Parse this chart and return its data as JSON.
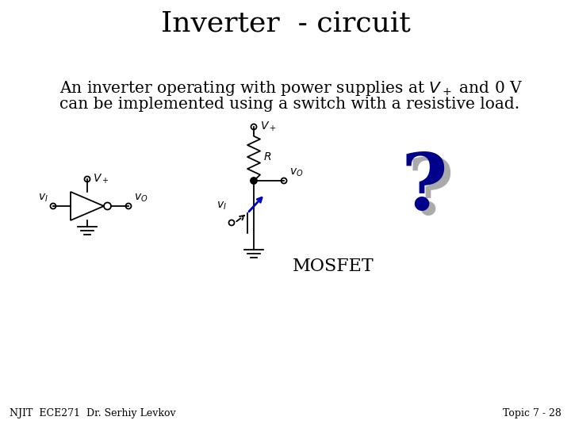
{
  "title": "Inverter  - circuit",
  "title_fontsize": 26,
  "title_font": "serif",
  "body_line1_prefix": "An inverter operating with power supplies at V",
  "body_line1_sup": "+",
  "body_line1_suffix": " and 0 V",
  "body_line2": "can be implemented using a switch with a resistive load.",
  "body_fontsize": 14.5,
  "footer_left": "NJIT  ECE271  Dr. Serhiy Levkov",
  "footer_right": "Topic 7 - 28",
  "footer_fontsize": 9,
  "mosfet_label": "MOSFET",
  "mosfet_fontsize": 16,
  "background_color": "#ffffff",
  "text_color": "#000000",
  "circuit_color": "#000000",
  "qmark_main": "#00008B",
  "qmark_shadow": "#aaaaaa",
  "qmark_fontsize": 72
}
